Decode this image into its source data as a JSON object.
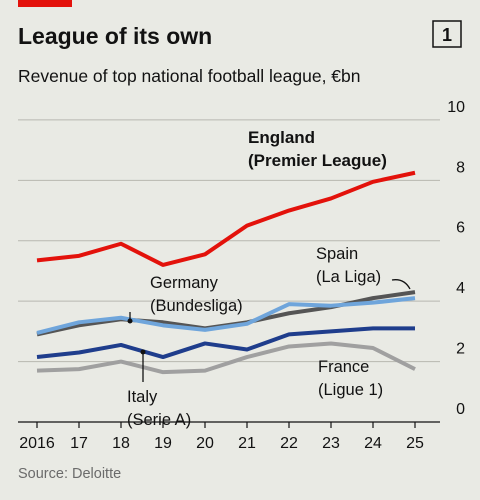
{
  "chart_data": {
    "type": "line",
    "title": "League of its own",
    "chart_number": "1",
    "subtitle": "Revenue of top national football league, €bn",
    "source": "Source: Deloitte",
    "categories": [
      "2016",
      "17",
      "18",
      "19",
      "20",
      "21",
      "22",
      "23",
      "24",
      "25"
    ],
    "ylim": [
      0,
      9.5
    ],
    "yticks": [
      0,
      2,
      4,
      6,
      8,
      10
    ],
    "grid": true,
    "series": [
      {
        "name": "France",
        "league": "(Ligue 1)",
        "color": "#a0a0a0",
        "values": [
          1.7,
          1.75,
          2.0,
          1.65,
          1.7,
          2.15,
          2.5,
          2.6,
          2.45,
          1.75
        ]
      },
      {
        "name": "Italy",
        "league": "(Serie A)",
        "color": "#1f3d8c",
        "values": [
          2.15,
          2.3,
          2.55,
          2.15,
          2.6,
          2.4,
          2.9,
          3.0,
          3.1,
          3.1
        ]
      },
      {
        "name": "Spain",
        "league": "(La Liga)",
        "color": "#555555",
        "values": [
          2.9,
          3.2,
          3.4,
          3.3,
          3.1,
          3.3,
          3.6,
          3.8,
          4.1,
          4.3
        ]
      },
      {
        "name": "Germany",
        "league": "(Bundesliga)",
        "color": "#6fa5db",
        "values": [
          2.95,
          3.3,
          3.45,
          3.2,
          3.05,
          3.25,
          3.9,
          3.85,
          3.95,
          4.1
        ]
      },
      {
        "name": "England",
        "league": "(Premier League)",
        "color": "#e3120b",
        "values": [
          5.35,
          5.5,
          5.9,
          5.2,
          5.55,
          6.5,
          7.0,
          7.4,
          7.95,
          8.25
        ]
      }
    ]
  }
}
